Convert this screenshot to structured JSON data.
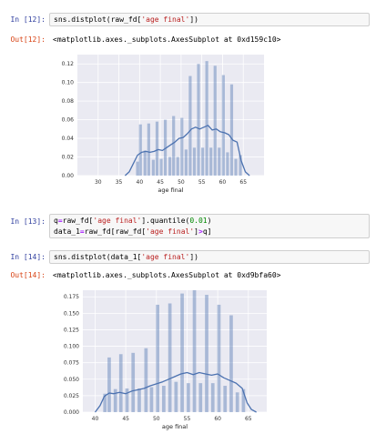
{
  "cells": [
    {
      "prompt": "In [12]:",
      "code_parts": [
        "sns.distplot(raw_fd[",
        "'age final'",
        "])"
      ]
    },
    {
      "prompt": "Out[12]:",
      "text": "<matplotlib.axes._subplots.AxesSubplot at 0xd159c10>"
    },
    {
      "prompt": "In [13]:",
      "line1_parts": [
        "q",
        "=",
        "raw_fd[",
        "'age final'",
        "].quantile(",
        "0.01",
        ")"
      ],
      "line2_parts": [
        "data_1",
        "=",
        "raw_fd[raw_fd[",
        "'age final'",
        "]",
        ">",
        "q]"
      ]
    },
    {
      "prompt": "In [14]:",
      "code_parts": [
        "sns.distplot(data_1[",
        "'age final'",
        "])"
      ]
    },
    {
      "prompt": "Out[14]:",
      "text": "<matplotlib.axes._subplots.AxesSubplot at 0xd9bfa60>"
    }
  ],
  "chart_data": [
    {
      "type": "bar",
      "xlabel": "age final",
      "ylabel": "",
      "xlim": [
        25,
        70
      ],
      "ylim": [
        0,
        0.13
      ],
      "xticks": [
        30,
        35,
        40,
        45,
        50,
        55,
        60,
        65
      ],
      "yticks": [
        "0.00",
        "0.02",
        "0.04",
        "0.06",
        "0.08",
        "0.10",
        "0.12"
      ],
      "bars": [
        {
          "x": 39.5,
          "y": 0.015
        },
        {
          "x": 40.2,
          "y": 0.055
        },
        {
          "x": 41.3,
          "y": 0.027
        },
        {
          "x": 42.2,
          "y": 0.056
        },
        {
          "x": 43.3,
          "y": 0.017
        },
        {
          "x": 44.2,
          "y": 0.058
        },
        {
          "x": 45.2,
          "y": 0.018
        },
        {
          "x": 46.2,
          "y": 0.06
        },
        {
          "x": 47.3,
          "y": 0.02
        },
        {
          "x": 48.2,
          "y": 0.064
        },
        {
          "x": 49.2,
          "y": 0.02
        },
        {
          "x": 50.2,
          "y": 0.062
        },
        {
          "x": 51.2,
          "y": 0.028
        },
        {
          "x": 52.2,
          "y": 0.107
        },
        {
          "x": 53.2,
          "y": 0.03
        },
        {
          "x": 54.2,
          "y": 0.12
        },
        {
          "x": 55.2,
          "y": 0.03
        },
        {
          "x": 56.2,
          "y": 0.123
        },
        {
          "x": 57.2,
          "y": 0.03
        },
        {
          "x": 58.2,
          "y": 0.118
        },
        {
          "x": 59.2,
          "y": 0.03
        },
        {
          "x": 60.2,
          "y": 0.108
        },
        {
          "x": 61.2,
          "y": 0.025
        },
        {
          "x": 62.2,
          "y": 0.098
        },
        {
          "x": 63.2,
          "y": 0.018
        },
        {
          "x": 64.3,
          "y": 0.022
        }
      ],
      "bar_width": 0.7,
      "kde": {
        "x": [
          36.5,
          37.5,
          38.5,
          39.5,
          40.5,
          41.5,
          42.5,
          43.5,
          44.5,
          45.5,
          46.5,
          47.5,
          48.5,
          49.5,
          50.5,
          51.5,
          52.5,
          53.5,
          54.5,
          55.5,
          56.5,
          57.5,
          58.5,
          59.5,
          60.5,
          61.5,
          62.5,
          63.5,
          64.5,
          65.5,
          66.5
        ],
        "y": [
          0,
          0.004,
          0.013,
          0.022,
          0.025,
          0.026,
          0.025,
          0.026,
          0.028,
          0.027,
          0.03,
          0.033,
          0.036,
          0.04,
          0.041,
          0.045,
          0.05,
          0.052,
          0.05,
          0.052,
          0.054,
          0.049,
          0.05,
          0.047,
          0.046,
          0.044,
          0.038,
          0.036,
          0.016,
          0.004,
          0
        ]
      }
    },
    {
      "type": "bar",
      "xlabel": "age final",
      "ylabel": "",
      "xlim": [
        38,
        68
      ],
      "ylim": [
        0,
        0.185
      ],
      "xticks": [
        40,
        45,
        50,
        55,
        60,
        65
      ],
      "yticks": [
        "0.000",
        "0.025",
        "0.050",
        "0.075",
        "0.100",
        "0.125",
        "0.150",
        "0.175"
      ],
      "bars": [
        {
          "x": 41.6,
          "y": 0.028
        },
        {
          "x": 42.3,
          "y": 0.083
        },
        {
          "x": 43.3,
          "y": 0.035
        },
        {
          "x": 44.2,
          "y": 0.088
        },
        {
          "x": 45.2,
          "y": 0.036
        },
        {
          "x": 46.2,
          "y": 0.09
        },
        {
          "x": 47.2,
          "y": 0.036
        },
        {
          "x": 48.3,
          "y": 0.097
        },
        {
          "x": 49.2,
          "y": 0.038
        },
        {
          "x": 50.2,
          "y": 0.163
        },
        {
          "x": 51.2,
          "y": 0.04
        },
        {
          "x": 52.2,
          "y": 0.165
        },
        {
          "x": 53.2,
          "y": 0.046
        },
        {
          "x": 54.2,
          "y": 0.18
        },
        {
          "x": 55.2,
          "y": 0.044
        },
        {
          "x": 56.2,
          "y": 0.185
        },
        {
          "x": 57.2,
          "y": 0.044
        },
        {
          "x": 58.2,
          "y": 0.178
        },
        {
          "x": 59.2,
          "y": 0.044
        },
        {
          "x": 60.2,
          "y": 0.163
        },
        {
          "x": 61.2,
          "y": 0.04
        },
        {
          "x": 62.2,
          "y": 0.147
        },
        {
          "x": 63.2,
          "y": 0.03
        },
        {
          "x": 64.2,
          "y": 0.035
        }
      ],
      "bar_width": 0.55,
      "kde": {
        "x": [
          40,
          40.8,
          41.5,
          42.3,
          43,
          44,
          45,
          46,
          47,
          48,
          49,
          50,
          51,
          52,
          53,
          54,
          55,
          56,
          57,
          58,
          59,
          60,
          61,
          62,
          63,
          64,
          64.8,
          65.5,
          66.3
        ],
        "y": [
          0,
          0.01,
          0.024,
          0.029,
          0.028,
          0.03,
          0.028,
          0.032,
          0.034,
          0.036,
          0.04,
          0.043,
          0.046,
          0.05,
          0.054,
          0.058,
          0.06,
          0.057,
          0.06,
          0.058,
          0.056,
          0.058,
          0.052,
          0.048,
          0.044,
          0.036,
          0.014,
          0.004,
          0
        ]
      }
    }
  ]
}
